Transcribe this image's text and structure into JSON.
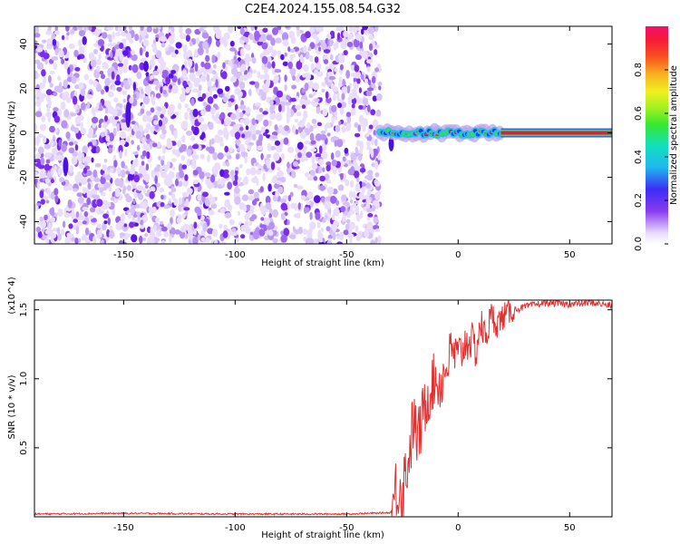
{
  "figure": {
    "title": "C2E4.2024.155.08.54.G32"
  },
  "colors": {
    "speckle": "#7b2cf0",
    "speckle_light": "#c9aef5",
    "snr_line": "#e03030",
    "tone_line": "#e8174a",
    "axis": "#000000"
  },
  "chart_data": [
    {
      "type": "heatmap",
      "title": "C2E4.2024.155.08.54.G32",
      "xlabel": "Height of straight line (km)",
      "ylabel": "Frequency (Hz)",
      "xlim": [
        -190,
        69
      ],
      "ylim": [
        -50,
        48
      ],
      "x_ticks": [
        "-150",
        "-100",
        "-50",
        "0",
        "50"
      ],
      "x_tick_values": [
        -150,
        -100,
        -50,
        0,
        50
      ],
      "y_ticks": [
        "-40",
        "-20",
        "0",
        "20",
        "40"
      ],
      "y_tick_values": [
        -40,
        -20,
        0,
        20,
        40
      ],
      "description_points": {
        "noise_region_x": [
          -190,
          -35
        ],
        "carrier_onset_x": -35,
        "carrier_frequency_hz": 0,
        "broadened_carrier_x": [
          -35,
          20
        ],
        "clean_carrier_x": [
          20,
          69
        ]
      },
      "colorbar": {
        "label": "Normalized spectral amplitude",
        "range": [
          0,
          1
        ],
        "ticks": [
          "0.0",
          "0.2",
          "0.4",
          "0.6",
          "0.8"
        ],
        "tick_values": [
          0.0,
          0.2,
          0.4,
          0.6,
          0.8
        ]
      }
    },
    {
      "type": "line",
      "xlabel": "Height of straight line (km)",
      "ylabel": "SNR (10 * v/v)",
      "scale_label": "(x10^4)",
      "xlim": [
        -190,
        69
      ],
      "ylim": [
        0,
        1.57
      ],
      "x_ticks": [
        "-150",
        "-100",
        "-50",
        "0",
        "50"
      ],
      "x_tick_values": [
        -150,
        -100,
        -50,
        0,
        50
      ],
      "y_ticks": [
        "0.5",
        "1.0",
        "1.5"
      ],
      "y_tick_values": [
        0.5,
        1.0,
        1.5
      ],
      "series": [
        {
          "x": [
            -190,
            -150,
            -100,
            -50,
            -30,
            -27,
            -25,
            -22,
            -20,
            -18,
            -15,
            -12,
            -10,
            -8,
            -5,
            -3,
            0,
            3,
            5,
            8,
            10,
            12,
            15,
            18,
            20,
            25,
            30,
            35,
            40,
            50,
            60,
            69
          ],
          "y": [
            0.02,
            0.025,
            0.02,
            0.02,
            0.03,
            0.25,
            0.2,
            0.45,
            0.7,
            0.55,
            0.8,
            0.95,
            1.0,
            0.95,
            1.1,
            1.2,
            1.15,
            1.25,
            1.3,
            1.2,
            1.4,
            1.3,
            1.45,
            1.4,
            1.45,
            1.5,
            1.52,
            1.54,
            1.55,
            1.54,
            1.55,
            1.53
          ]
        }
      ]
    }
  ]
}
